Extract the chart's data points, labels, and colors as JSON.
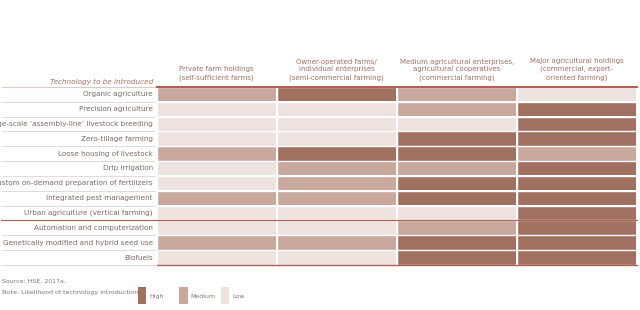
{
  "col_headers": [
    "Private farm holdings\n(self-sufficient farms)",
    "Owner-operated farms/\nindividual enterprises\n(semi-commercial farming)",
    "Medium agricultural enterprises,\nagricultural cooperatives\n(commercial farming)",
    "Major agricultural holdings\n(commercial, export-\noriented farming)"
  ],
  "row_labels": [
    "Organic agriculture",
    "Precision agriculture",
    "Large-scale ‘assembly-line’ livestock breeding",
    "Zero-tillage farming",
    "Loose housing of livestock",
    "Drip irrigation",
    "Custom on-demand preparation of fertilizers",
    "Integrated pest management",
    "Urban agriculture (vertical farming)",
    "Automation and computerization",
    "Genetically modified and hybrid seed use",
    "Biofuels"
  ],
  "grid": [
    [
      "medium",
      "high",
      "medium",
      "low"
    ],
    [
      "low",
      "low",
      "medium",
      "high"
    ],
    [
      "low",
      "low",
      "low",
      "high"
    ],
    [
      "low",
      "low",
      "high",
      "high"
    ],
    [
      "medium",
      "high",
      "high",
      "medium"
    ],
    [
      "low",
      "medium",
      "medium",
      "high"
    ],
    [
      "low",
      "medium",
      "high",
      "high"
    ],
    [
      "medium",
      "medium",
      "high",
      "high"
    ],
    [
      "low",
      "low",
      "low",
      "high"
    ],
    [
      "low",
      "low",
      "medium",
      "high"
    ],
    [
      "medium",
      "medium",
      "high",
      "high"
    ],
    [
      "low",
      "low",
      "high",
      "high"
    ]
  ],
  "color_high": "#a07060",
  "color_medium": "#c9a89e",
  "color_low": "#ede2de",
  "header_color": "#a07060",
  "row_label_color": "#7a6a65",
  "source_text": "Source: HSE, 2017a.",
  "note_text": "Note: Likelihood of technology introduction:",
  "legend_labels": [
    "High",
    "Medium",
    "Low"
  ],
  "figure_label": "Technology to be introduced",
  "background": "#ffffff",
  "separator_color": "#d8ccc8",
  "border_color": "#c08070",
  "thick_line_color": "#b06050"
}
